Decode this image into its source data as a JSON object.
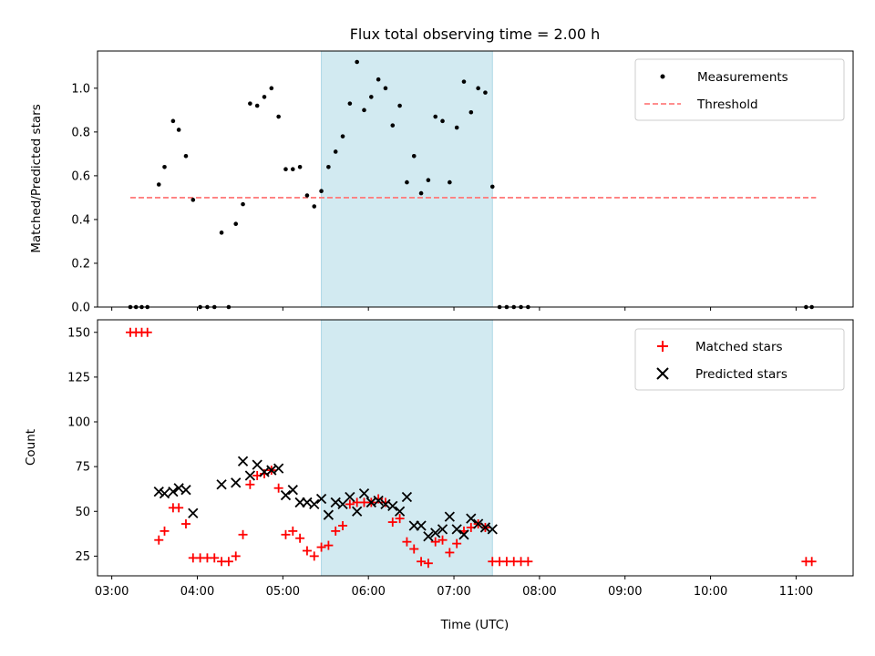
{
  "chart_data": [
    {
      "type": "scatter",
      "title": "Flux total observing time = 2.00 h",
      "xlabel": "",
      "ylabel": "Matched/Predicted stars",
      "ylim": [
        0,
        1.17
      ],
      "yticks": [
        "0.0",
        "0.2",
        "0.4",
        "0.6",
        "0.8",
        "1.0"
      ],
      "ytick_values": [
        0,
        0.2,
        0.4,
        0.6,
        0.8,
        1.0
      ],
      "xlim": [
        "02:50",
        "11:40"
      ],
      "shaded_interval": [
        "05:27",
        "07:27"
      ],
      "shade_color": "#add8e6",
      "legend_position": "upper right",
      "series": [
        {
          "name": "Measurements",
          "marker": "dot",
          "color": "#000000",
          "points": [
            [
              "03:13",
              0
            ],
            [
              "03:17",
              0
            ],
            [
              "03:21",
              0
            ],
            [
              "03:25",
              0
            ],
            [
              "03:33",
              0.56
            ],
            [
              "03:37",
              0.64
            ],
            [
              "03:43",
              0.85
            ],
            [
              "03:47",
              0.81
            ],
            [
              "03:52",
              0.69
            ],
            [
              "03:57",
              0.49
            ],
            [
              "04:02",
              0
            ],
            [
              "04:07",
              0
            ],
            [
              "04:12",
              0
            ],
            [
              "04:17",
              0.34
            ],
            [
              "04:22",
              0
            ],
            [
              "04:27",
              0.38
            ],
            [
              "04:32",
              0.47
            ],
            [
              "04:37",
              0.93
            ],
            [
              "04:42",
              0.92
            ],
            [
              "04:47",
              0.96
            ],
            [
              "04:52",
              1.0
            ],
            [
              "04:57",
              0.87
            ],
            [
              "05:02",
              0.63
            ],
            [
              "05:07",
              0.63
            ],
            [
              "05:12",
              0.64
            ],
            [
              "05:17",
              0.51
            ],
            [
              "05:22",
              0.46
            ],
            [
              "05:27",
              0.53
            ],
            [
              "05:32",
              0.64
            ],
            [
              "05:37",
              0.71
            ],
            [
              "05:42",
              0.78
            ],
            [
              "05:47",
              0.93
            ],
            [
              "05:52",
              1.12
            ],
            [
              "05:57",
              0.9
            ],
            [
              "06:02",
              0.96
            ],
            [
              "06:07",
              1.04
            ],
            [
              "06:12",
              1.0
            ],
            [
              "06:17",
              0.83
            ],
            [
              "06:22",
              0.92
            ],
            [
              "06:27",
              0.57
            ],
            [
              "06:32",
              0.69
            ],
            [
              "06:37",
              0.52
            ],
            [
              "06:42",
              0.58
            ],
            [
              "06:47",
              0.87
            ],
            [
              "06:52",
              0.85
            ],
            [
              "06:57",
              0.57
            ],
            [
              "07:02",
              0.82
            ],
            [
              "07:07",
              1.03
            ],
            [
              "07:12",
              0.89
            ],
            [
              "07:17",
              1.0
            ],
            [
              "07:22",
              0.98
            ],
            [
              "07:27",
              0.55
            ],
            [
              "07:32",
              0
            ],
            [
              "07:37",
              0
            ],
            [
              "07:42",
              0
            ],
            [
              "07:47",
              0
            ],
            [
              "07:52",
              0
            ],
            [
              "11:07",
              0
            ],
            [
              "11:11",
              0
            ]
          ]
        },
        {
          "name": "Threshold",
          "marker": "dashed-line",
          "color": "#ff7f7f",
          "points": [
            [
              "03:13",
              0.5
            ],
            [
              "11:14",
              0.5
            ]
          ]
        }
      ]
    },
    {
      "type": "scatter",
      "title": "",
      "xlabel": "Time (UTC)",
      "ylabel": "Count",
      "ylim": [
        14,
        157
      ],
      "yticks": [
        "25",
        "50",
        "75",
        "100",
        "125",
        "150"
      ],
      "ytick_values": [
        25,
        50,
        75,
        100,
        125,
        150
      ],
      "xlim": [
        "02:50",
        "11:40"
      ],
      "xticks": [
        "03:00",
        "04:00",
        "05:00",
        "06:00",
        "07:00",
        "08:00",
        "09:00",
        "10:00",
        "11:00"
      ],
      "shaded_interval": [
        "05:27",
        "07:27"
      ],
      "shade_color": "#add8e6",
      "legend_position": "upper right",
      "series": [
        {
          "name": "Matched stars",
          "marker": "plus",
          "color": "#ff0000",
          "points": [
            [
              "03:13",
              150
            ],
            [
              "03:17",
              150
            ],
            [
              "03:21",
              150
            ],
            [
              "03:25",
              150
            ],
            [
              "03:33",
              34
            ],
            [
              "03:37",
              39
            ],
            [
              "03:43",
              52
            ],
            [
              "03:47",
              52
            ],
            [
              "03:52",
              43
            ],
            [
              "03:57",
              24
            ],
            [
              "04:02",
              24
            ],
            [
              "04:07",
              24
            ],
            [
              "04:12",
              24
            ],
            [
              "04:17",
              22
            ],
            [
              "04:22",
              22
            ],
            [
              "04:27",
              25
            ],
            [
              "04:32",
              37
            ],
            [
              "04:37",
              65
            ],
            [
              "04:42",
              70
            ],
            [
              "04:47",
              71
            ],
            [
              "04:52",
              73
            ],
            [
              "04:57",
              63
            ],
            [
              "05:02",
              37
            ],
            [
              "05:07",
              39
            ],
            [
              "05:12",
              35
            ],
            [
              "05:17",
              28
            ],
            [
              "05:22",
              25
            ],
            [
              "05:27",
              30
            ],
            [
              "05:32",
              31
            ],
            [
              "05:37",
              39
            ],
            [
              "05:42",
              42
            ],
            [
              "05:47",
              54
            ],
            [
              "05:52",
              55
            ],
            [
              "05:57",
              55
            ],
            [
              "06:02",
              55
            ],
            [
              "06:07",
              57
            ],
            [
              "06:12",
              55
            ],
            [
              "06:17",
              44
            ],
            [
              "06:22",
              46
            ],
            [
              "06:27",
              33
            ],
            [
              "06:32",
              29
            ],
            [
              "06:37",
              22
            ],
            [
              "06:42",
              21
            ],
            [
              "06:47",
              33
            ],
            [
              "06:52",
              34
            ],
            [
              "06:57",
              27
            ],
            [
              "07:02",
              32
            ],
            [
              "07:07",
              39
            ],
            [
              "07:12",
              41
            ],
            [
              "07:17",
              43
            ],
            [
              "07:22",
              41
            ],
            [
              "07:27",
              22
            ],
            [
              "07:32",
              22
            ],
            [
              "07:37",
              22
            ],
            [
              "07:42",
              22
            ],
            [
              "07:47",
              22
            ],
            [
              "07:52",
              22
            ],
            [
              "11:07",
              22
            ],
            [
              "11:11",
              22
            ]
          ]
        },
        {
          "name": "Predicted stars",
          "marker": "x",
          "color": "#000000",
          "points": [
            [
              "03:33",
              61
            ],
            [
              "03:37",
              60
            ],
            [
              "03:43",
              61
            ],
            [
              "03:47",
              63
            ],
            [
              "03:52",
              62
            ],
            [
              "03:57",
              49
            ],
            [
              "04:17",
              65
            ],
            [
              "04:27",
              66
            ],
            [
              "04:32",
              78
            ],
            [
              "04:37",
              70
            ],
            [
              "04:42",
              76
            ],
            [
              "04:47",
              72
            ],
            [
              "04:52",
              73
            ],
            [
              "04:57",
              74
            ],
            [
              "05:02",
              59
            ],
            [
              "05:07",
              62
            ],
            [
              "05:12",
              55
            ],
            [
              "05:17",
              55
            ],
            [
              "05:22",
              54
            ],
            [
              "05:27",
              57
            ],
            [
              "05:32",
              48
            ],
            [
              "05:37",
              55
            ],
            [
              "05:42",
              54
            ],
            [
              "05:47",
              58
            ],
            [
              "05:52",
              50
            ],
            [
              "05:57",
              60
            ],
            [
              "06:02",
              55
            ],
            [
              "06:07",
              56
            ],
            [
              "06:12",
              54
            ],
            [
              "06:17",
              53
            ],
            [
              "06:22",
              50
            ],
            [
              "06:27",
              58
            ],
            [
              "06:32",
              42
            ],
            [
              "06:37",
              42
            ],
            [
              "06:42",
              36
            ],
            [
              "06:47",
              38
            ],
            [
              "06:52",
              40
            ],
            [
              "06:57",
              47
            ],
            [
              "07:02",
              40
            ],
            [
              "07:07",
              37
            ],
            [
              "07:12",
              46
            ],
            [
              "07:17",
              43
            ],
            [
              "07:22",
              41
            ],
            [
              "07:27",
              40
            ]
          ]
        }
      ]
    }
  ]
}
